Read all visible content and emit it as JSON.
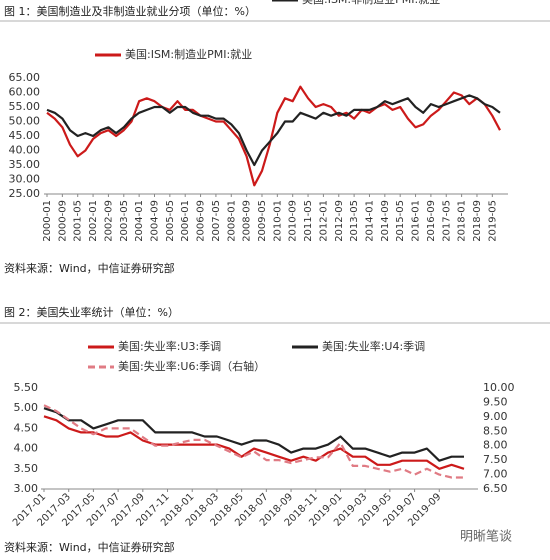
{
  "chart_data": [
    {
      "type": "line",
      "title": "图 1：美国制造业及非制造业就业分项（单位：%）",
      "source": "资料来源：Wind，中信证券研究部",
      "categories": [
        "2000-01",
        null,
        "2000-09",
        null,
        "2001-05",
        null,
        "2002-01",
        null,
        "2002-09",
        null,
        "2003-05",
        null,
        "2004-01",
        null,
        "2004-09",
        null,
        "2005-05",
        null,
        "2006-01",
        null,
        "2006-09",
        null,
        "2007-05",
        null,
        "2008-01",
        null,
        "2008-09",
        null,
        "2009-05",
        null,
        "2010-01",
        null,
        "2010-09",
        null,
        "2011-05",
        null,
        "2012-01",
        null,
        "2012-09",
        null,
        "2013-05",
        null,
        "2014-01",
        null,
        "2014-09",
        null,
        "2015-05",
        null,
        "2016-01",
        null,
        "2016-09",
        null,
        "2017-05",
        null,
        "2018-01",
        null,
        "2018-09",
        null,
        "2019-05",
        null
      ],
      "series": [
        {
          "name": "美国:ISM:制造业PMI:就业",
          "color": "#cc1a1a",
          "values": [
            53,
            51,
            48,
            42,
            38,
            40,
            44,
            46,
            47,
            45,
            47,
            50,
            57,
            58,
            57,
            55,
            54,
            57,
            54,
            54,
            52,
            51,
            50,
            50,
            47,
            44,
            38,
            28,
            33,
            42,
            53,
            58,
            57,
            62,
            58,
            55,
            56,
            55,
            52,
            53,
            51,
            54,
            53,
            55,
            56,
            54,
            55,
            51,
            48,
            49,
            52,
            54,
            57,
            60,
            59,
            56,
            58,
            56,
            52,
            47
          ]
        },
        {
          "name": "美国:ISM:非制造业PMI:就业",
          "color": "#222222",
          "values": [
            54,
            53,
            51,
            47,
            45,
            46,
            45,
            47,
            48,
            46,
            48,
            51,
            53,
            54,
            55,
            55,
            53,
            55,
            55,
            53,
            52,
            52,
            51,
            51,
            49,
            46,
            40,
            35,
            40,
            43,
            46,
            50,
            50,
            53,
            52,
            51,
            53,
            52,
            53,
            52,
            54,
            54,
            54,
            55,
            57,
            56,
            57,
            58,
            55,
            53,
            56,
            55,
            56,
            57,
            58,
            59,
            58,
            56,
            55,
            53
          ]
        }
      ],
      "ylim": [
        25,
        65
      ],
      "yticks": [
        {
          "value": 25,
          "label": "25.00"
        },
        {
          "value": 30,
          "label": "30.00"
        },
        {
          "value": 35,
          "label": "35.00"
        },
        {
          "value": 40,
          "label": "40.00"
        },
        {
          "value": 45,
          "label": "45.00"
        },
        {
          "value": 50,
          "label": "50.00"
        },
        {
          "value": 55,
          "label": "55.00"
        },
        {
          "value": 60,
          "label": "60.00"
        },
        {
          "value": 65,
          "label": "65.00"
        }
      ],
      "grid": false,
      "legend": "top"
    },
    {
      "type": "line",
      "title": "图 2：美国失业率统计（单位：%）",
      "source": "资料来源：Wind，中信证券研究部",
      "categories": [
        "2017-01",
        null,
        "2017-03",
        null,
        "2017-05",
        null,
        "2017-07",
        null,
        "2017-09",
        null,
        "2017-11",
        null,
        "2018-01",
        null,
        "2018-03",
        null,
        "2018-05",
        null,
        "2018-07",
        null,
        "2018-09",
        null,
        "2018-11",
        null,
        "2019-01",
        null,
        "2019-03",
        null,
        "2019-05",
        null,
        "2019-07",
        null,
        "2019-09",
        null,
        null
      ],
      "series": [
        {
          "name": "美国:失业率:U3:季调",
          "color": "#cc1a1a",
          "values": [
            4.8,
            4.7,
            4.5,
            4.4,
            4.4,
            4.3,
            4.3,
            4.4,
            4.2,
            4.1,
            4.1,
            4.1,
            4.1,
            4.1,
            4.1,
            4.0,
            3.8,
            4.0,
            3.9,
            3.8,
            3.7,
            3.8,
            3.7,
            3.9,
            4.0,
            3.8,
            3.8,
            3.6,
            3.6,
            3.7,
            3.7,
            3.7,
            3.5,
            3.6,
            3.5
          ]
        },
        {
          "name": "美国:失业率:U4:季调",
          "color": "#222222",
          "values": [
            5.0,
            4.9,
            4.7,
            4.7,
            4.5,
            4.6,
            4.7,
            4.7,
            4.7,
            4.4,
            4.4,
            4.4,
            4.4,
            4.3,
            4.3,
            4.2,
            4.1,
            4.2,
            4.2,
            4.1,
            3.9,
            4.0,
            4.0,
            4.1,
            4.3,
            4.0,
            4.0,
            3.9,
            3.8,
            3.9,
            3.9,
            4.0,
            3.7,
            3.8,
            3.8
          ]
        },
        {
          "name": "美国:失业率:U6:季调（右轴）",
          "color": "#e07b84",
          "dashed": true,
          "axis": "y2",
          "values": [
            9.4,
            9.2,
            8.9,
            8.6,
            8.4,
            8.6,
            8.6,
            8.6,
            8.3,
            8.0,
            8.0,
            8.1,
            8.2,
            8.2,
            8.0,
            7.8,
            7.6,
            7.8,
            7.5,
            7.5,
            7.4,
            7.5,
            7.6,
            7.6,
            8.1,
            7.3,
            7.3,
            7.2,
            7.1,
            7.2,
            7.0,
            7.2,
            7.0,
            6.9,
            6.9
          ]
        }
      ],
      "ylim": [
        3,
        5.5
      ],
      "yticks": [
        {
          "value": 3,
          "label": "3.00"
        },
        {
          "value": 3.5,
          "label": "3.50"
        },
        {
          "value": 4,
          "label": "4.00"
        },
        {
          "value": 4.5,
          "label": "4.50"
        },
        {
          "value": 5,
          "label": "5.00"
        },
        {
          "value": 5.5,
          "label": "5.50"
        }
      ],
      "y2lim": [
        6.5,
        10
      ],
      "y2ticks": [
        {
          "value": 6.5,
          "label": "6.50"
        },
        {
          "value": 7,
          "label": "7.00"
        },
        {
          "value": 7.5,
          "label": "7.50"
        },
        {
          "value": 8,
          "label": "8.00"
        },
        {
          "value": 8.5,
          "label": "8.50"
        },
        {
          "value": 9,
          "label": "9.00"
        },
        {
          "value": 9.5,
          "label": "9.50"
        },
        {
          "value": 10,
          "label": "10.00"
        }
      ],
      "grid": false,
      "legend": "top"
    }
  ],
  "watermark": "明晰笔谈"
}
